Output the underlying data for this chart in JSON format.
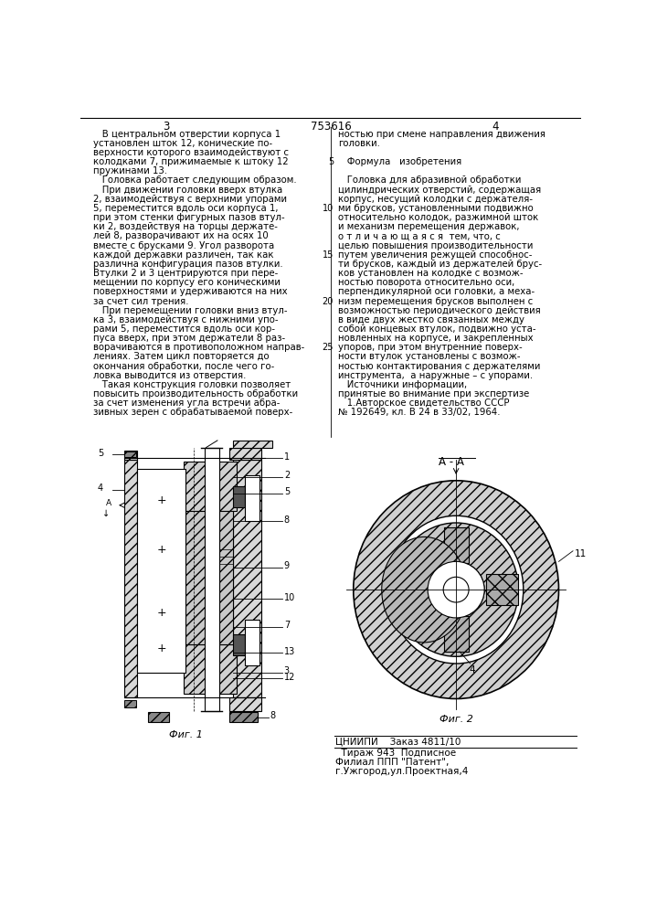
{
  "page_number_left": "3",
  "page_number_center": "753616",
  "page_number_right": "4",
  "bg_color": "#ffffff",
  "text_color": "#000000",
  "left_column_text": [
    "   В центральном отверстии корпуса 1",
    "установлен шток 12, конические по-",
    "верхности которого взаимодействуют с",
    "колодками 7, прижимаемые к штоку 12",
    "пружинами 13.",
    "   Головка работает следующим образом.",
    "   При движении головки вверх втулка",
    "2, взаимодействуя с верхними упорами",
    "5, переместится вдоль оси корпуса 1,",
    "при этом стенки фигурных пазов втул-",
    "ки 2, воздействуя на торцы держате-",
    "лей 8, разворачивают их на осях 10",
    "вместе с брусками 9. Угол разворота",
    "каждой державки различен, так как",
    "различна конфигурация пазов втулки.",
    "Втулки 2 и 3 центрируются при пере-",
    "мещении по корпусу его коническими",
    "поверхностями и удерживаются на них",
    "за счет сил трения.",
    "   При перемещении головки вниз втул-",
    "ка 3, взаимодействуя с нижними упо-",
    "рами 5, переместится вдоль оси кор-",
    "пуса вверх, при этом держатели 8 раз-",
    "ворачиваются в противоположном направ-",
    "лениях. Затем цикл повторяется до",
    "окончания обработки, после чего го-",
    "ловка выводится из отверстия.",
    "   Такая конструкция головки позволяет",
    "повысить производительность обработки",
    "за счет изменения угла встречи абра-",
    "зивных зерен с обрабатываемой поверх-"
  ],
  "right_column_text": [
    "ностью при смене направления движения",
    "головки.",
    "",
    "   Формула   изобретения",
    "",
    "   Головка для абразивной обработки",
    "цилиндрических отверстий, содержащая",
    "корпус, несущий колодки с держателя-",
    "ми брусков, установленными подвижно",
    "относительно колодок, разжимной шток",
    "и механизм перемещения державок,",
    "о т л и ч а ю щ а я с я  тем, что, с",
    "целью повышения производительности",
    "путем увеличения режущей способнос-",
    "ти брусков, каждый из держателей брус-",
    "ков установлен на колодке с возмож-",
    "ностью поворота относительно оси,",
    "перпендикулярной оси головки, а меха-",
    "низм перемещения брусков выполнен с",
    "возможностью периодического действия",
    "в виде двух жестко связанных между",
    "собой концевых втулок, подвижно уста-",
    "новленных на корпусе, и закрепленных",
    "упоров, при этом внутренние поверх-",
    "ности втулок установлены с возмож-",
    "ностью контактирования с держателями",
    "инструмента,  а наружные – с упорами.",
    "   Источники информации,",
    "принятые во внимание при экспертизе",
    "   1.Авторское свидетельство СССР",
    "№ 192649, кл. В 24 в 33/02, 1964."
  ],
  "line_numbers": [
    [
      5,
      5
    ],
    [
      10,
      10
    ],
    [
      15,
      15
    ],
    [
      20,
      20
    ],
    [
      25,
      25
    ]
  ],
  "fig1_label": "Фиг. 1",
  "fig2_label": "Фиг. 2",
  "section_label": "А - А",
  "bottom_text_1": "ЦНИИПИ    Заказ 4811/10",
  "bottom_text_2": "  Тираж 943  Подписное",
  "bottom_text_3": "Филиал ППП \"Патент\",",
  "bottom_text_4": "г.Ужгород,ул.Проектная,4"
}
